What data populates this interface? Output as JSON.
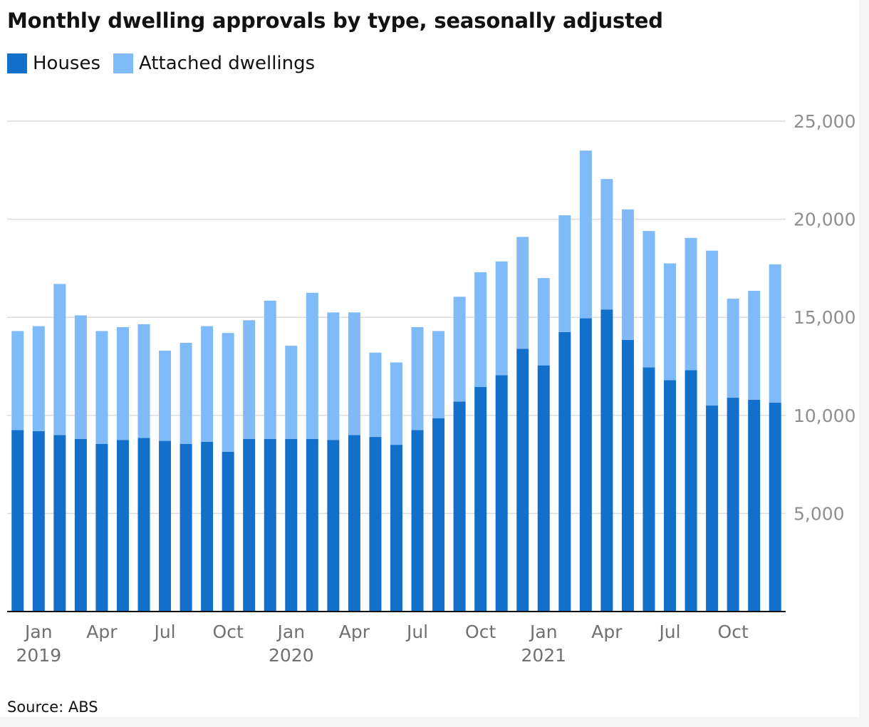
{
  "title": "Monthly dwelling approvals by type, seasonally adjusted",
  "source": "Source: ABS",
  "colors": {
    "houses": "#1270cb",
    "attached": "#7fbaf9",
    "grid": "#dcdcdc",
    "axis": "#121212"
  },
  "chart_data": {
    "type": "bar",
    "stacked": true,
    "title": "Monthly dwelling approvals by type, seasonally adjusted",
    "xlabel": "",
    "ylabel": "",
    "ylim": [
      0,
      25000
    ],
    "yticks": [
      5000,
      10000,
      15000,
      20000,
      25000
    ],
    "ytick_labels": [
      "5,000",
      "10,000",
      "15,000",
      "20,000",
      "25,000"
    ],
    "grid": true,
    "y_axis_side": "right",
    "legend_position": "top-left",
    "categories": [
      "Dec 2018",
      "Jan 2019",
      "Feb 2019",
      "Mar 2019",
      "Apr 2019",
      "May 2019",
      "Jun 2019",
      "Jul 2019",
      "Aug 2019",
      "Sep 2019",
      "Oct 2019",
      "Nov 2019",
      "Dec 2019",
      "Jan 2020",
      "Feb 2020",
      "Mar 2020",
      "Apr 2020",
      "May 2020",
      "Jun 2020",
      "Jul 2020",
      "Aug 2020",
      "Sep 2020",
      "Oct 2020",
      "Nov 2020",
      "Dec 2020",
      "Jan 2021",
      "Feb 2021",
      "Mar 2021",
      "Apr 2021",
      "May 2021",
      "Jun 2021",
      "Jul 2021",
      "Aug 2021",
      "Sep 2021",
      "Oct 2021",
      "Nov 2021",
      "Dec 2021"
    ],
    "x_tick_labels": [
      {
        "index": 1,
        "month": "Jan",
        "year": "2019"
      },
      {
        "index": 4,
        "month": "Apr",
        "year": ""
      },
      {
        "index": 7,
        "month": "Jul",
        "year": ""
      },
      {
        "index": 10,
        "month": "Oct",
        "year": ""
      },
      {
        "index": 13,
        "month": "Jan",
        "year": "2020"
      },
      {
        "index": 16,
        "month": "Apr",
        "year": ""
      },
      {
        "index": 19,
        "month": "Jul",
        "year": ""
      },
      {
        "index": 22,
        "month": "Oct",
        "year": ""
      },
      {
        "index": 25,
        "month": "Jan",
        "year": "2021"
      },
      {
        "index": 28,
        "month": "Apr",
        "year": ""
      },
      {
        "index": 31,
        "month": "Jul",
        "year": ""
      },
      {
        "index": 34,
        "month": "Oct",
        "year": ""
      }
    ],
    "series": [
      {
        "name": "Houses",
        "color": "#1270cb",
        "values": [
          9250,
          9200,
          9000,
          8800,
          8550,
          8750,
          8850,
          8700,
          8550,
          8650,
          8150,
          8800,
          8800,
          8800,
          8800,
          8750,
          9000,
          8900,
          8500,
          9250,
          9850,
          10700,
          11450,
          12050,
          13400,
          12550,
          14250,
          14950,
          15400,
          13850,
          12450,
          11800,
          12300,
          10500,
          10900,
          10800,
          10650
        ]
      },
      {
        "name": "Attached dwellings",
        "color": "#7fbaf9",
        "values": [
          5050,
          5350,
          7700,
          6300,
          5750,
          5750,
          5800,
          4600,
          5150,
          5900,
          6050,
          6050,
          7050,
          4750,
          7450,
          6500,
          6250,
          4300,
          4200,
          5250,
          4450,
          5350,
          5850,
          5800,
          5700,
          4450,
          5950,
          8550,
          6650,
          6650,
          6950,
          5950,
          6750,
          7900,
          5050,
          5550,
          7050
        ]
      }
    ]
  }
}
